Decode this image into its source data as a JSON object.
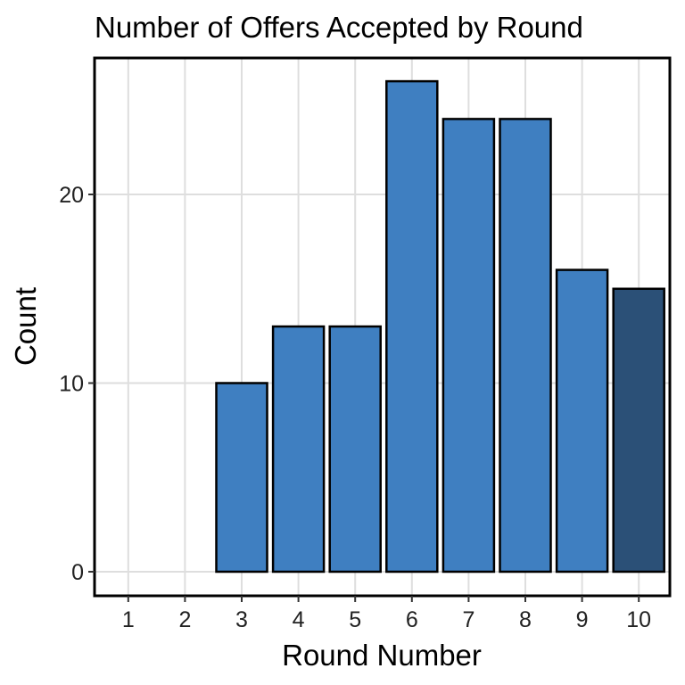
{
  "chart_data": {
    "type": "bar",
    "title": "Number of Offers Accepted by Round",
    "xlabel": "Round Number",
    "ylabel": "Count",
    "categories": [
      "1",
      "2",
      "3",
      "4",
      "5",
      "6",
      "7",
      "8",
      "9",
      "10"
    ],
    "values": [
      0,
      0,
      10,
      13,
      13,
      26,
      24,
      24,
      16,
      15
    ],
    "ylim": [
      0,
      27
    ],
    "yticks": [
      0,
      10,
      20
    ],
    "grid": true,
    "legend": "none",
    "colors": {
      "bar": "#3f7fc1",
      "highlight_bar": "#2b5077",
      "border": "#000000",
      "grid": "#dedede"
    },
    "highlight_category": "10"
  }
}
